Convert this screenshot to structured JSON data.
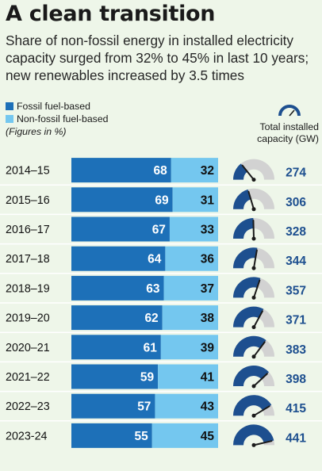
{
  "header": {
    "title": "A clean transition",
    "subtitle": "Share of non-fossil energy in installed electricity capacity surged from 32% to 45% in last 10 years; new renewables increased by 3.5 times"
  },
  "legend": {
    "fossil": "Fossil fuel-based",
    "nonfossil": "Non-fossil fuel-based",
    "note": "(Figures in %)"
  },
  "capacity_label_line1": "Total installed",
  "capacity_label_line2": "capacity (GW)",
  "colors": {
    "fossil": "#1d70b8",
    "nonfossil": "#74c7ef",
    "gauge_fill": "#1d4f8f",
    "gauge_track": "#d2d2d2",
    "background": "#eef6e9",
    "row_separator": "#ffffff"
  },
  "chart_data": {
    "type": "bar",
    "orientation": "horizontal",
    "stacked": true,
    "categories": [
      "2014–15",
      "2015–16",
      "2016–17",
      "2017–18",
      "2018–19",
      "2019–20",
      "2020–21",
      "2021–22",
      "2022–23",
      "2023-24"
    ],
    "series": [
      {
        "name": "Fossil fuel-based",
        "values": [
          68,
          69,
          67,
          64,
          63,
          62,
          61,
          59,
          57,
          55
        ]
      },
      {
        "name": "Non-fossil fuel-based",
        "values": [
          32,
          31,
          33,
          36,
          37,
          38,
          39,
          41,
          43,
          45
        ]
      }
    ],
    "capacity": {
      "name": "Total installed capacity (GW)",
      "values": [
        274,
        306,
        328,
        344,
        357,
        371,
        383,
        398,
        415,
        441
      ]
    },
    "xlim": [
      0,
      100
    ],
    "units": "%"
  }
}
